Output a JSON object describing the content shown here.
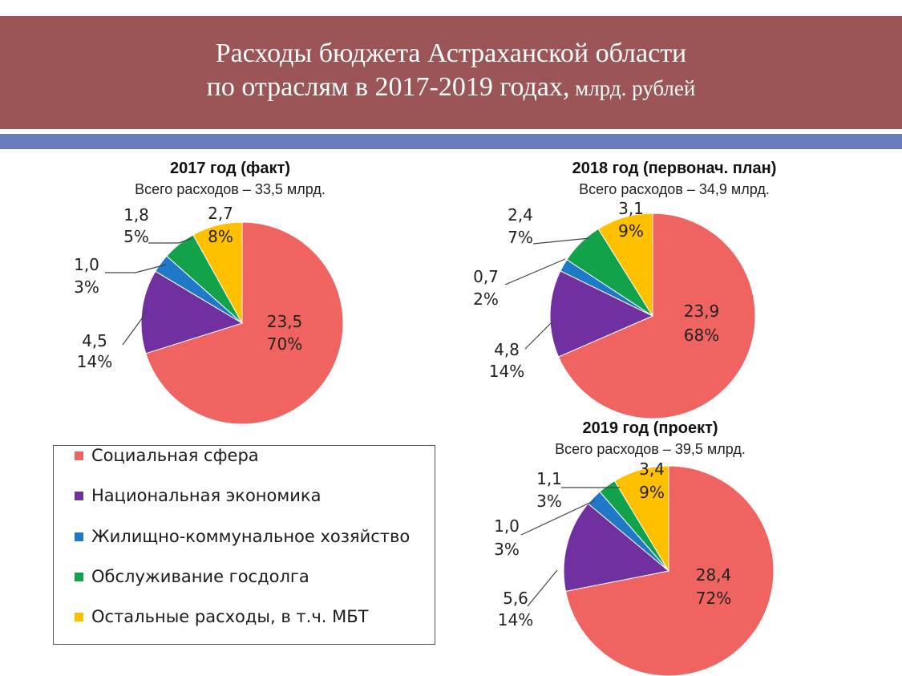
{
  "header": {
    "line1": "Расходы бюджета Астраханской области",
    "line2_main": "по отраслям в 2017-2019 годах,",
    "line2_unit": " млрд. рублей"
  },
  "colors": {
    "social": "#ef6461",
    "economy": "#7030a0",
    "housing": "#1f78c8",
    "debt": "#12a24a",
    "other": "#ffc000"
  },
  "legend": [
    {
      "label": "Социальная сфера",
      "color": "#ef6461"
    },
    {
      "label": "Национальная экономика",
      "color": "#7030a0"
    },
    {
      "label": "Жилищно-коммунальное хозяйство",
      "color": "#1f78c8"
    },
    {
      "label": "Обслуживание госдолга",
      "color": "#12a24a"
    },
    {
      "label": "Остальные расходы,  в т.ч. МБТ",
      "color": "#ffc000"
    }
  ],
  "chart_data": [
    {
      "type": "pie",
      "title": "2017 год (факт)",
      "subtitle": "Всего расходов – 33,5 млрд.",
      "categories": [
        "Социальная сфера",
        "Национальная экономика",
        "Жилищно-коммунальное хозяйство",
        "Обслуживание госдолга",
        "Остальные расходы,  в т.ч. МБТ"
      ],
      "values": [
        23.5,
        4.5,
        1.0,
        1.8,
        2.7
      ],
      "value_labels": [
        "23,5",
        "4,5",
        "1,0",
        "1,8",
        "2,7"
      ],
      "percent_labels": [
        "70%",
        "14%",
        "3%",
        "5%",
        "8%"
      ]
    },
    {
      "type": "pie",
      "title": "2018 год (первонач. план)",
      "subtitle": "Всего расходов – 34,9 млрд.",
      "categories": [
        "Социальная сфера",
        "Национальная экономика",
        "Жилищно-коммунальное хозяйство",
        "Обслуживание госдолга",
        "Остальные расходы,  в т.ч. МБТ"
      ],
      "values": [
        23.9,
        4.8,
        0.7,
        2.4,
        3.1
      ],
      "value_labels": [
        "23,9",
        "4,8",
        "0,7",
        "2,4",
        "3,1"
      ],
      "percent_labels": [
        "68%",
        "14%",
        "2%",
        "7%",
        "9%"
      ]
    },
    {
      "type": "pie",
      "title": "2019 год (проект)",
      "subtitle": "Всего расходов – 39,5 млрд.",
      "categories": [
        "Социальная сфера",
        "Национальная экономика",
        "Жилищно-коммунальное хозяйство",
        "Обслуживание госдолга",
        "Остальные расходы,  в т.ч. МБТ"
      ],
      "values": [
        28.4,
        5.6,
        1.0,
        1.1,
        3.4
      ],
      "value_labels": [
        "28,4",
        "5,6",
        "1,0",
        "1,1",
        "3,4"
      ],
      "percent_labels": [
        "72%",
        "14%",
        "3%",
        "3%",
        "9%"
      ]
    }
  ]
}
